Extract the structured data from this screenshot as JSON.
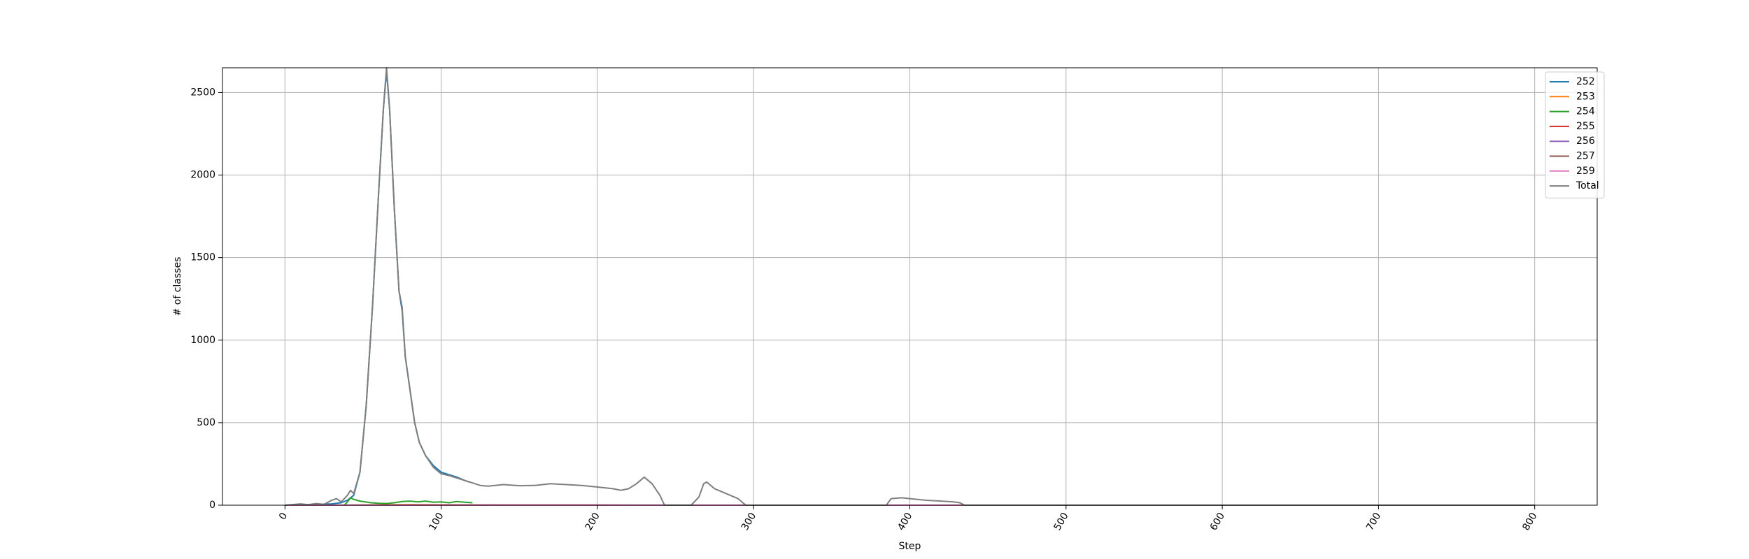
{
  "chart_data": {
    "type": "line",
    "title": "",
    "xlabel": "Step",
    "ylabel": "# of classes",
    "xlim": [
      -40,
      840
    ],
    "ylim": [
      0,
      2650
    ],
    "xticks": [
      0,
      100,
      200,
      300,
      400,
      500,
      600,
      700,
      800
    ],
    "yticks": [
      0,
      500,
      1000,
      1500,
      2000,
      2500
    ],
    "xtick_rotation": -60,
    "grid": true,
    "legend_position": "top-right",
    "series": [
      {
        "name": "252",
        "color": "#1f77b4",
        "points": [
          [
            0,
            0
          ],
          [
            10,
            3
          ],
          [
            20,
            5
          ],
          [
            30,
            8
          ],
          [
            36,
            15
          ],
          [
            40,
            30
          ],
          [
            44,
            60
          ],
          [
            48,
            200
          ],
          [
            52,
            600
          ],
          [
            56,
            1200
          ],
          [
            60,
            1900
          ],
          [
            63,
            2400
          ],
          [
            65,
            2630
          ],
          [
            67,
            2400
          ],
          [
            70,
            1800
          ],
          [
            73,
            1300
          ],
          [
            75,
            1180
          ],
          [
            77,
            900
          ],
          [
            80,
            700
          ],
          [
            83,
            500
          ],
          [
            86,
            380
          ],
          [
            90,
            300
          ],
          [
            95,
            240
          ],
          [
            100,
            200
          ],
          [
            105,
            185
          ],
          [
            110,
            170
          ],
          [
            115,
            150
          ],
          [
            118,
            140
          ]
        ]
      },
      {
        "name": "253",
        "color": "#ff7f0e",
        "points": [
          [
            0,
            0
          ],
          [
            40,
            0
          ],
          [
            60,
            2
          ],
          [
            80,
            3
          ],
          [
            100,
            2
          ],
          [
            120,
            1
          ],
          [
            150,
            0
          ],
          [
            250,
            0
          ],
          [
            400,
            0
          ],
          [
            800,
            0
          ]
        ]
      },
      {
        "name": "254",
        "color": "#2ca02c",
        "points": [
          [
            38,
            0
          ],
          [
            40,
            20
          ],
          [
            42,
            45
          ],
          [
            44,
            35
          ],
          [
            48,
            25
          ],
          [
            55,
            15
          ],
          [
            60,
            12
          ],
          [
            65,
            10
          ],
          [
            70,
            15
          ],
          [
            75,
            22
          ],
          [
            80,
            25
          ],
          [
            85,
            20
          ],
          [
            90,
            25
          ],
          [
            95,
            18
          ],
          [
            100,
            20
          ],
          [
            105,
            15
          ],
          [
            110,
            22
          ],
          [
            115,
            18
          ],
          [
            120,
            15
          ]
        ]
      },
      {
        "name": "255",
        "color": "#d62728",
        "points": [
          [
            0,
            0
          ],
          [
            100,
            1
          ],
          [
            200,
            1
          ],
          [
            300,
            0
          ],
          [
            400,
            0
          ],
          [
            500,
            0
          ],
          [
            600,
            0
          ],
          [
            700,
            0
          ],
          [
            800,
            0
          ]
        ]
      },
      {
        "name": "256",
        "color": "#9467bd",
        "points": [
          [
            0,
            0
          ],
          [
            100,
            0
          ],
          [
            200,
            0
          ],
          [
            300,
            0
          ],
          [
            400,
            0
          ],
          [
            500,
            0
          ],
          [
            600,
            0
          ],
          [
            700,
            0
          ],
          [
            800,
            0
          ]
        ]
      },
      {
        "name": "257",
        "color": "#8c564b",
        "points": [
          [
            0,
            0
          ],
          [
            100,
            0
          ],
          [
            200,
            0
          ],
          [
            300,
            0
          ],
          [
            400,
            0
          ],
          [
            500,
            0
          ],
          [
            600,
            0
          ],
          [
            700,
            0
          ],
          [
            800,
            0
          ]
        ]
      },
      {
        "name": "259",
        "color": "#e377c2",
        "points": [
          [
            0,
            0
          ],
          [
            100,
            0
          ],
          [
            200,
            0
          ],
          [
            300,
            0
          ],
          [
            400,
            0
          ],
          [
            500,
            0
          ],
          [
            600,
            0
          ],
          [
            700,
            0
          ],
          [
            800,
            0
          ]
        ]
      },
      {
        "name": "Total",
        "color": "#7f7f7f",
        "points": [
          [
            0,
            0
          ],
          [
            10,
            8
          ],
          [
            15,
            3
          ],
          [
            20,
            10
          ],
          [
            25,
            5
          ],
          [
            30,
            30
          ],
          [
            33,
            40
          ],
          [
            36,
            20
          ],
          [
            40,
            60
          ],
          [
            42,
            90
          ],
          [
            44,
            70
          ],
          [
            48,
            200
          ],
          [
            52,
            600
          ],
          [
            56,
            1200
          ],
          [
            60,
            1900
          ],
          [
            63,
            2400
          ],
          [
            65,
            2650
          ],
          [
            67,
            2400
          ],
          [
            70,
            1800
          ],
          [
            73,
            1300
          ],
          [
            75,
            1200
          ],
          [
            77,
            900
          ],
          [
            80,
            700
          ],
          [
            83,
            500
          ],
          [
            86,
            380
          ],
          [
            90,
            300
          ],
          [
            95,
            230
          ],
          [
            100,
            190
          ],
          [
            105,
            180
          ],
          [
            110,
            165
          ],
          [
            115,
            150
          ],
          [
            120,
            135
          ],
          [
            125,
            120
          ],
          [
            130,
            115
          ],
          [
            140,
            125
          ],
          [
            150,
            118
          ],
          [
            160,
            120
          ],
          [
            170,
            130
          ],
          [
            180,
            125
          ],
          [
            190,
            120
          ],
          [
            200,
            110
          ],
          [
            210,
            100
          ],
          [
            215,
            90
          ],
          [
            220,
            100
          ],
          [
            225,
            130
          ],
          [
            230,
            170
          ],
          [
            235,
            130
          ],
          [
            240,
            60
          ],
          [
            243,
            0
          ],
          [
            260,
            0
          ],
          [
            265,
            50
          ],
          [
            268,
            130
          ],
          [
            270,
            140
          ],
          [
            275,
            100
          ],
          [
            280,
            80
          ],
          [
            285,
            60
          ],
          [
            290,
            40
          ],
          [
            295,
            0
          ],
          [
            385,
            0
          ],
          [
            388,
            40
          ],
          [
            395,
            45
          ],
          [
            400,
            40
          ],
          [
            410,
            30
          ],
          [
            420,
            25
          ],
          [
            428,
            20
          ],
          [
            432,
            15
          ],
          [
            435,
            0
          ],
          [
            800,
            0
          ]
        ]
      }
    ]
  }
}
